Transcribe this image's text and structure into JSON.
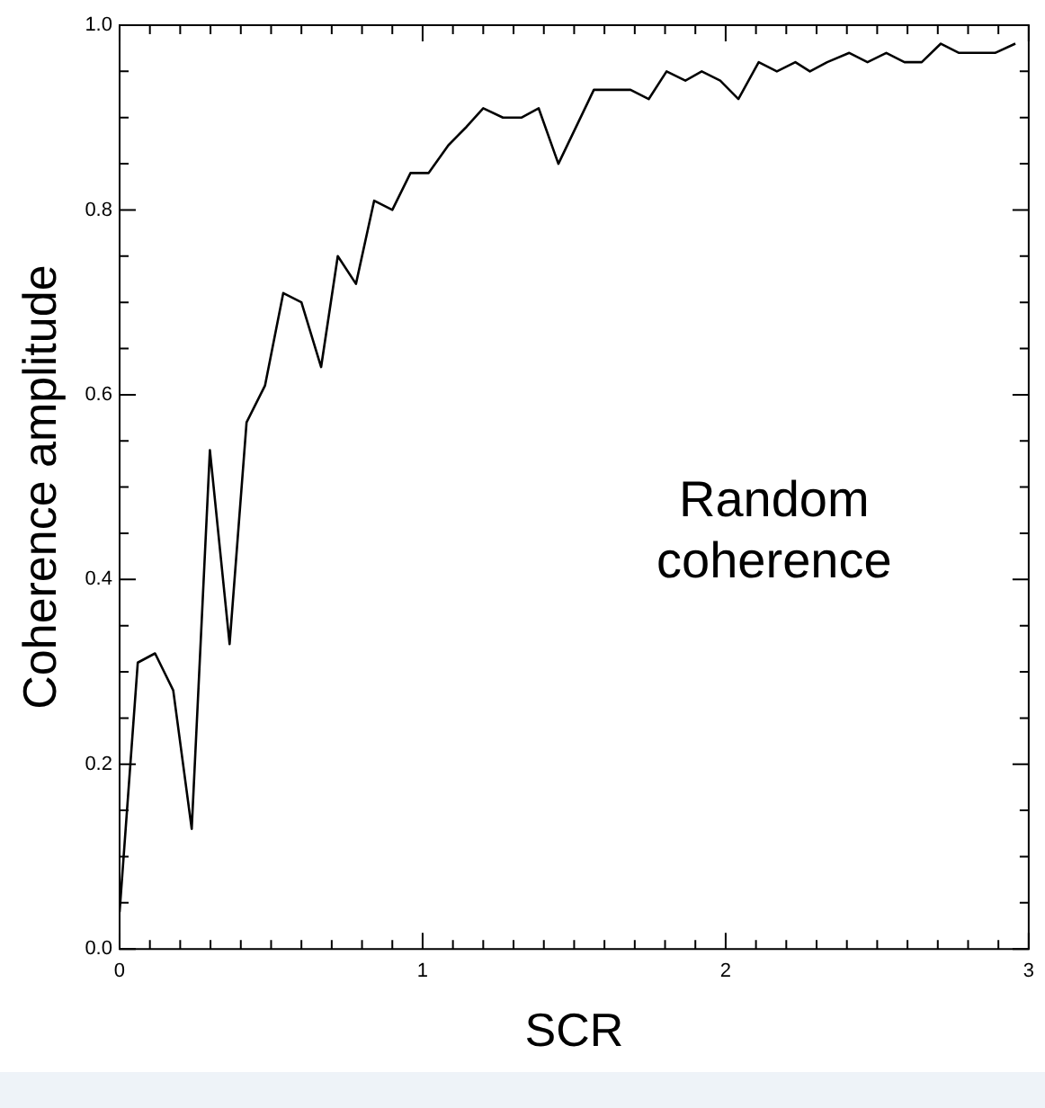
{
  "chart_data": {
    "type": "line",
    "xlabel": "SCR",
    "ylabel": "Coherence amplitude",
    "annotations": [
      "Random\ncoherence"
    ],
    "x": [
      0,
      0.06,
      0.117,
      0.177,
      0.238,
      0.298,
      0.363,
      0.419,
      0.48,
      0.54,
      0.6,
      0.665,
      0.72,
      0.78,
      0.84,
      0.9,
      0.96,
      1.02,
      1.085,
      1.145,
      1.2,
      1.265,
      1.327,
      1.383,
      1.448,
      1.565,
      1.599,
      1.686,
      1.746,
      1.805,
      1.867,
      1.921,
      1.982,
      2.042,
      2.109,
      2.169,
      2.23,
      2.278,
      2.335,
      2.408,
      2.468,
      2.53,
      2.59,
      2.647,
      2.71,
      2.77,
      2.819,
      2.889,
      2.956
    ],
    "series": [
      {
        "color": "#000000",
        "values": [
          0.04,
          0.31,
          0.32,
          0.28,
          0.13,
          0.54,
          0.33,
          0.57,
          0.61,
          0.71,
          0.7,
          0.63,
          0.75,
          0.72,
          0.81,
          0.8,
          0.84,
          0.84,
          0.87,
          0.89,
          0.91,
          0.9,
          0.9,
          0.91,
          0.85,
          0.93,
          0.93,
          0.93,
          0.92,
          0.95,
          0.94,
          0.95,
          0.94,
          0.92,
          0.96,
          0.95,
          0.96,
          0.95,
          0.96,
          0.97,
          0.96,
          0.97,
          0.96,
          0.96,
          0.98,
          0.97,
          0.97,
          0.97,
          0.98
        ]
      }
    ],
    "xlim": [
      0,
      3
    ],
    "xticks": [
      0,
      {
        "value": 0.1,
        "label": null
      },
      {
        "value": 0.2,
        "label": null
      },
      {
        "value": 0.3,
        "label": null
      },
      {
        "value": 0.4,
        "label": null
      },
      {
        "value": 0.5,
        "label": null
      },
      {
        "value": 0.6,
        "label": null
      },
      {
        "value": 0.7,
        "label": null
      },
      {
        "value": 0.8,
        "label": null
      },
      {
        "value": 0.9,
        "label": null
      },
      1,
      {
        "value": 1.1,
        "label": null
      },
      {
        "value": 1.2,
        "label": null
      },
      {
        "value": 1.3,
        "label": null
      },
      {
        "value": 1.4,
        "label": null
      },
      {
        "value": 1.5,
        "label": null
      },
      {
        "value": 1.6,
        "label": null
      },
      {
        "value": 1.7,
        "label": null
      },
      {
        "value": 1.8,
        "label": null
      },
      {
        "value": 1.9,
        "label": null
      },
      2,
      {
        "value": 2.1,
        "label": null
      },
      {
        "value": 2.2,
        "label": null
      },
      {
        "value": 2.3,
        "label": null
      },
      {
        "value": 2.4,
        "label": null
      },
      {
        "value": 2.5,
        "label": null
      },
      {
        "value": 2.6,
        "label": null
      },
      {
        "value": 2.7,
        "label": null
      },
      {
        "value": 2.8,
        "label": null
      },
      {
        "value": 2.9,
        "label": null
      },
      3
    ],
    "ylim": [
      0,
      1
    ],
    "yticks": [
      {
        "value": 0,
        "label": "0.0"
      },
      {
        "value": 0.05,
        "label": null
      },
      {
        "value": 0.1,
        "label": null
      },
      {
        "value": 0.15,
        "label": null
      },
      {
        "value": 0.2,
        "label": "0.2"
      },
      {
        "value": 0.25,
        "label": null
      },
      {
        "value": 0.3,
        "label": null
      },
      {
        "value": 0.35,
        "label": null
      },
      {
        "value": 0.4,
        "label": "0.4"
      },
      {
        "value": 0.45,
        "label": null
      },
      {
        "value": 0.5,
        "label": null
      },
      {
        "value": 0.55,
        "label": null
      },
      {
        "value": 0.6,
        "label": "0.6"
      },
      {
        "value": 0.65,
        "label": null
      },
      {
        "value": 0.7,
        "label": null
      },
      {
        "value": 0.75,
        "label": null
      },
      {
        "value": 0.8,
        "label": "0.8"
      },
      {
        "value": 0.85,
        "label": null
      },
      {
        "value": 0.9,
        "label": null
      },
      {
        "value": 0.95,
        "label": null
      },
      {
        "value": 1,
        "label": "1.0"
      }
    ],
    "marker": "none",
    "line_style": "solid",
    "grid": false,
    "legend": false
  }
}
